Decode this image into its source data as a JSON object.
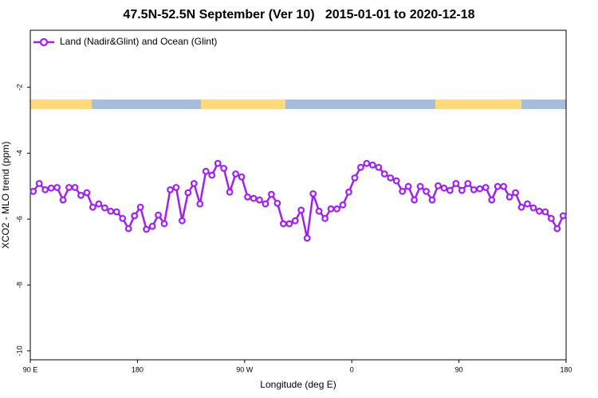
{
  "chart_data": {
    "type": "line",
    "title": "47.5N-52.5N September (Ver 10)   2015-01-01 to 2020-12-18",
    "xlabel": "Longitude (deg E)",
    "ylabel": "XCO2 - MLO trend (ppm)",
    "xlim": [
      90,
      540
    ],
    "ylim": [
      -10.27,
      -0.27
    ],
    "xticks": [
      {
        "value": 90,
        "label": "90 E"
      },
      {
        "value": 180,
        "label": "180"
      },
      {
        "value": 270,
        "label": "90 W"
      },
      {
        "value": 360,
        "label": "0"
      },
      {
        "value": 450,
        "label": "90"
      },
      {
        "value": 540,
        "label": "180"
      }
    ],
    "yticks": [
      -10,
      -8,
      -6,
      -4,
      -2
    ],
    "legend": "upper left",
    "x": [
      92.5,
      97.5,
      102.5,
      107.5,
      112.5,
      117.5,
      122.5,
      127.5,
      132.5,
      137.5,
      142.5,
      147.5,
      152.5,
      157.5,
      162.5,
      167.5,
      172.5,
      177.5,
      182.5,
      187.5,
      192.5,
      197.5,
      202.5,
      207.5,
      212.5,
      217.5,
      222.5,
      227.5,
      232.5,
      237.5,
      242.5,
      247.5,
      252.5,
      257.5,
      262.5,
      267.5,
      272.5,
      277.5,
      282.5,
      287.5,
      292.5,
      297.5,
      302.5,
      307.5,
      312.5,
      317.5,
      322.5,
      327.5,
      332.5,
      337.5,
      342.5,
      347.5,
      352.5,
      357.5,
      362.5,
      367.5,
      372.5,
      377.5,
      382.5,
      387.5,
      392.5,
      397.5,
      402.5,
      407.5,
      412.5,
      417.5,
      422.5,
      427.5,
      432.5,
      437.5,
      442.5,
      447.5,
      452.5,
      457.5,
      462.5,
      467.5,
      472.5,
      477.5,
      482.5,
      487.5,
      492.5,
      497.5,
      502.5,
      507.5,
      512.5,
      517.5,
      522.5,
      527.5,
      532.5,
      537.5
    ],
    "series": [
      {
        "name": "Land (Nadir&Glint) and Ocean (Glint)",
        "color": "#a020f0",
        "values": [
          -5.16,
          -4.92,
          -5.11,
          -5.06,
          -5.04,
          -5.42,
          -5.04,
          -5.04,
          -5.28,
          -5.2,
          -5.64,
          -5.54,
          -5.66,
          -5.76,
          -5.78,
          -5.98,
          -6.29,
          -5.9,
          -5.64,
          -6.31,
          -6.22,
          -5.88,
          -6.14,
          -5.11,
          -5.04,
          -6.05,
          -5.2,
          -4.92,
          -5.54,
          -4.55,
          -4.67,
          -4.31,
          -4.46,
          -5.18,
          -4.63,
          -4.72,
          -5.33,
          -5.37,
          -5.42,
          -5.54,
          -5.25,
          -5.52,
          -6.14,
          -6.14,
          -6.05,
          -5.73,
          -6.58,
          -5.23,
          -5.76,
          -5.98,
          -5.69,
          -5.69,
          -5.57,
          -5.18,
          -4.75,
          -4.43,
          -4.31,
          -4.36,
          -4.43,
          -4.63,
          -4.75,
          -4.84,
          -5.16,
          -5.01,
          -5.42,
          -5.01,
          -5.16,
          -5.42,
          -4.99,
          -5.06,
          -5.13,
          -4.92,
          -5.13,
          -4.92,
          -5.11,
          -5.08,
          -5.04,
          -5.42,
          -5.01,
          -5.01,
          -5.33,
          -5.2,
          -5.64,
          -5.54,
          -5.66,
          -5.76,
          -5.78,
          -5.98,
          -6.29,
          -5.9
        ]
      }
    ]
  }
}
